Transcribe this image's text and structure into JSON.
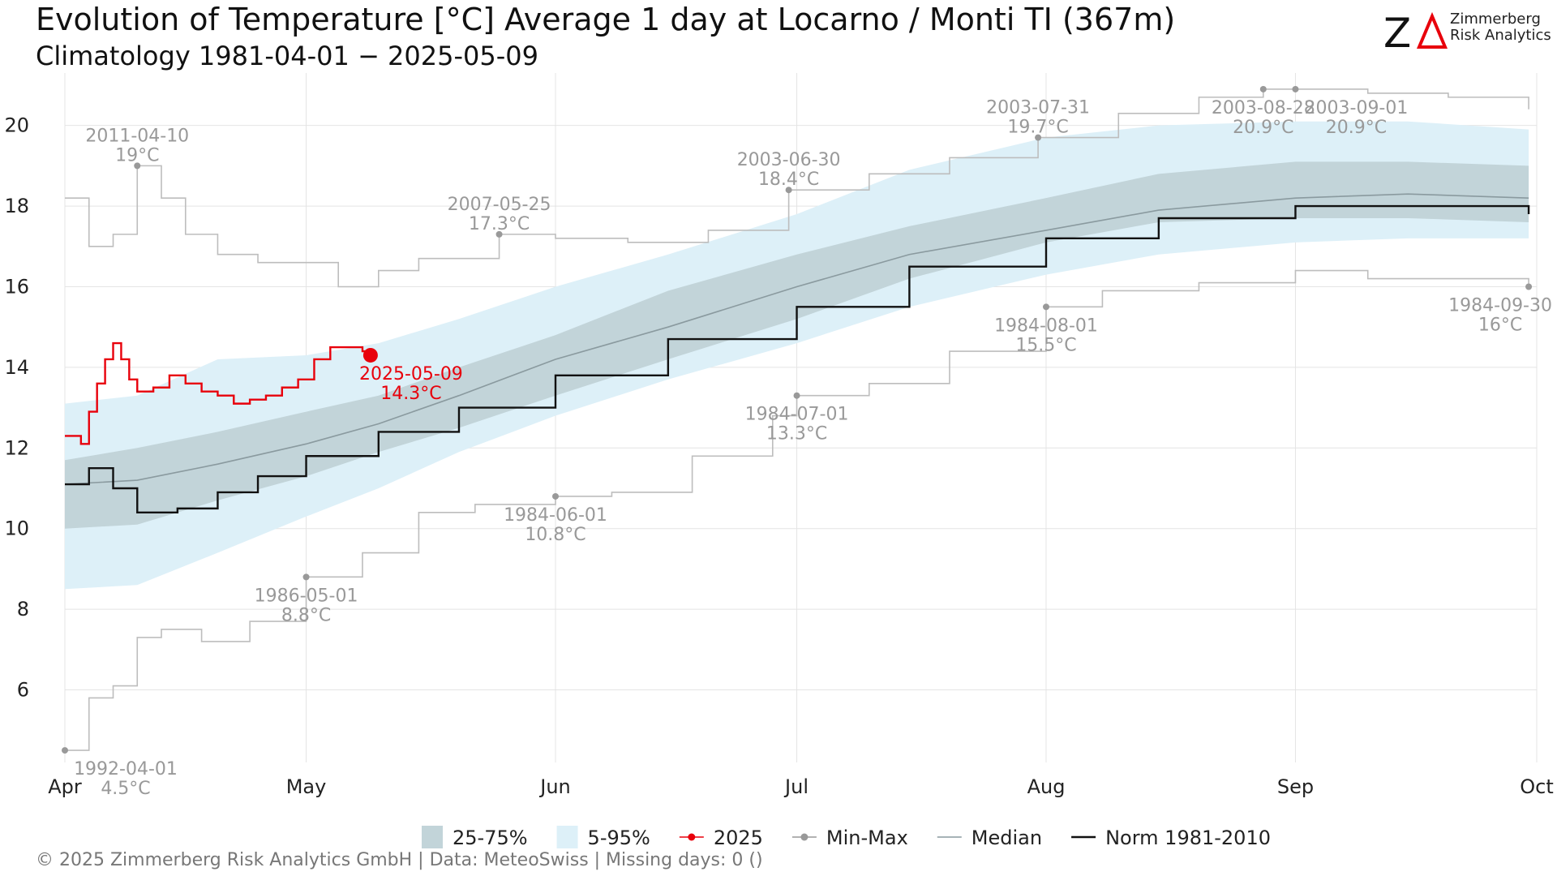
{
  "header": {
    "title": "Evolution of Temperature [°C] Average 1 day at Locarno / Monti  TI (367m)",
    "subtitle": "Climatology 1981-04-01 − 2025-05-09"
  },
  "logo": {
    "line1": "Zimmerberg",
    "line2": "Risk Analytics",
    "accent_color": "#e8000b"
  },
  "footer": {
    "text": "©  2025 Zimmerberg Risk Analytics GmbH | Data: MeteoSwiss | Missing days: 0 ()"
  },
  "chart_data": {
    "type": "line",
    "x_unit": "date",
    "xlim": [
      "2025-04-01",
      "2025-10-01"
    ],
    "ylim": [
      4.2,
      21.1
    ],
    "x_ticks": [
      {
        "date": "2025-04-01",
        "label": "Apr"
      },
      {
        "date": "2025-05-01",
        "label": "May"
      },
      {
        "date": "2025-06-01",
        "label": "Jun"
      },
      {
        "date": "2025-07-01",
        "label": "Jul"
      },
      {
        "date": "2025-08-01",
        "label": "Aug"
      },
      {
        "date": "2025-09-01",
        "label": "Sep"
      },
      {
        "date": "2025-10-01",
        "label": "Oct"
      }
    ],
    "y_ticks": [
      6,
      8,
      10,
      12,
      14,
      16,
      18,
      20
    ],
    "grid": true,
    "legend_position": "bottom",
    "legend": [
      {
        "key": "band2575",
        "label": "25-75%",
        "color": "#c2d4d9"
      },
      {
        "key": "band595",
        "label": "5-95%",
        "color": "#ddf0f8"
      },
      {
        "key": "y2025",
        "label": "2025",
        "color": "#e8000b"
      },
      {
        "key": "minmax",
        "label": "Min-Max",
        "color": "#999999"
      },
      {
        "key": "median",
        "label": "Median",
        "color": "#8a9a9f"
      },
      {
        "key": "norm",
        "label": "Norm 1981-2010",
        "color": "#111111"
      }
    ],
    "band_5_95": {
      "x": [
        "2025-04-01",
        "2025-04-10",
        "2025-04-20",
        "2025-05-01",
        "2025-05-10",
        "2025-05-20",
        "2025-06-01",
        "2025-06-15",
        "2025-07-01",
        "2025-07-15",
        "2025-08-01",
        "2025-08-15",
        "2025-09-01",
        "2025-09-15",
        "2025-09-30"
      ],
      "lower": [
        8.5,
        8.6,
        9.4,
        10.3,
        11.0,
        11.9,
        12.8,
        13.7,
        14.6,
        15.5,
        16.3,
        16.8,
        17.1,
        17.2,
        17.2
      ],
      "upper": [
        13.1,
        13.3,
        14.2,
        14.3,
        14.6,
        15.2,
        16.0,
        16.8,
        17.8,
        18.9,
        19.7,
        20.0,
        20.1,
        20.1,
        19.9
      ]
    },
    "band_25_75": {
      "x": [
        "2025-04-01",
        "2025-04-10",
        "2025-04-20",
        "2025-05-01",
        "2025-05-10",
        "2025-05-20",
        "2025-06-01",
        "2025-06-15",
        "2025-07-01",
        "2025-07-15",
        "2025-08-01",
        "2025-08-15",
        "2025-09-01",
        "2025-09-15",
        "2025-09-30"
      ],
      "lower": [
        10.0,
        10.1,
        10.7,
        11.3,
        11.9,
        12.5,
        13.3,
        14.2,
        15.2,
        16.2,
        17.1,
        17.6,
        17.7,
        17.7,
        17.6
      ],
      "upper": [
        11.7,
        12.0,
        12.4,
        12.9,
        13.3,
        14.0,
        14.8,
        15.9,
        16.8,
        17.5,
        18.2,
        18.8,
        19.1,
        19.1,
        19.0
      ]
    },
    "median": {
      "x": [
        "2025-04-01",
        "2025-04-10",
        "2025-04-20",
        "2025-05-01",
        "2025-05-10",
        "2025-05-20",
        "2025-06-01",
        "2025-06-15",
        "2025-07-01",
        "2025-07-15",
        "2025-08-01",
        "2025-08-15",
        "2025-09-01",
        "2025-09-15",
        "2025-09-30"
      ],
      "values": [
        11.1,
        11.2,
        11.6,
        12.1,
        12.6,
        13.3,
        14.2,
        15.0,
        16.0,
        16.8,
        17.4,
        17.9,
        18.2,
        18.3,
        18.2
      ]
    },
    "norm_1981_2010": {
      "x": [
        "2025-04-01",
        "2025-04-04",
        "2025-04-07",
        "2025-04-10",
        "2025-04-15",
        "2025-04-20",
        "2025-04-25",
        "2025-05-01",
        "2025-05-10",
        "2025-05-20",
        "2025-06-01",
        "2025-06-15",
        "2025-07-01",
        "2025-07-15",
        "2025-08-01",
        "2025-08-15",
        "2025-09-01",
        "2025-09-15",
        "2025-09-30"
      ],
      "values": [
        11.1,
        11.5,
        11.0,
        10.4,
        10.5,
        10.9,
        11.3,
        11.8,
        12.4,
        13.0,
        13.8,
        14.7,
        15.5,
        16.5,
        17.2,
        17.7,
        18.0,
        18.0,
        17.8
      ]
    },
    "max_series": {
      "x": [
        "2025-04-01",
        "2025-04-04",
        "2025-04-07",
        "2025-04-10",
        "2025-04-13",
        "2025-04-16",
        "2025-04-20",
        "2025-04-25",
        "2025-05-01",
        "2025-05-05",
        "2025-05-10",
        "2025-05-15",
        "2025-05-25",
        "2025-06-01",
        "2025-06-10",
        "2025-06-20",
        "2025-06-30",
        "2025-07-10",
        "2025-07-20",
        "2025-07-31",
        "2025-08-10",
        "2025-08-20",
        "2025-08-28",
        "2025-09-01",
        "2025-09-10",
        "2025-09-20",
        "2025-09-30"
      ],
      "values": [
        18.2,
        17.0,
        17.3,
        19.0,
        18.2,
        17.3,
        16.8,
        16.6,
        16.6,
        16.0,
        16.4,
        16.7,
        17.3,
        17.2,
        17.1,
        17.4,
        18.4,
        18.8,
        19.2,
        19.7,
        20.3,
        20.7,
        20.9,
        20.9,
        20.8,
        20.7,
        20.4
      ]
    },
    "min_series": {
      "x": [
        "2025-04-01",
        "2025-04-04",
        "2025-04-07",
        "2025-04-10",
        "2025-04-13",
        "2025-04-18",
        "2025-04-24",
        "2025-05-01",
        "2025-05-08",
        "2025-05-15",
        "2025-05-22",
        "2025-06-01",
        "2025-06-08",
        "2025-06-18",
        "2025-06-28",
        "2025-07-01",
        "2025-07-10",
        "2025-07-20",
        "2025-08-01",
        "2025-08-08",
        "2025-08-20",
        "2025-09-01",
        "2025-09-10",
        "2025-09-20",
        "2025-09-30"
      ],
      "values": [
        4.5,
        5.8,
        6.1,
        7.3,
        7.5,
        7.2,
        7.7,
        8.8,
        9.4,
        10.4,
        10.6,
        10.8,
        10.9,
        11.8,
        12.8,
        13.3,
        13.6,
        14.4,
        15.5,
        15.9,
        16.1,
        16.4,
        16.2,
        16.2,
        16.0
      ]
    },
    "series_2025": {
      "name": "2025",
      "x": [
        "2025-04-01",
        "2025-04-03",
        "2025-04-04",
        "2025-04-05",
        "2025-04-06",
        "2025-04-07",
        "2025-04-08",
        "2025-04-09",
        "2025-04-10",
        "2025-04-12",
        "2025-04-14",
        "2025-04-16",
        "2025-04-18",
        "2025-04-20",
        "2025-04-22",
        "2025-04-24",
        "2025-04-26",
        "2025-04-28",
        "2025-04-30",
        "2025-05-02",
        "2025-05-04",
        "2025-05-06",
        "2025-05-08",
        "2025-05-09"
      ],
      "values": [
        12.3,
        12.1,
        12.9,
        13.6,
        14.2,
        14.6,
        14.2,
        13.7,
        13.4,
        13.5,
        13.8,
        13.6,
        13.4,
        13.3,
        13.1,
        13.2,
        13.3,
        13.5,
        13.7,
        14.2,
        14.5,
        14.5,
        14.4,
        14.3
      ]
    },
    "current": {
      "date": "2025-05-09",
      "value": 14.3,
      "label_date": "2025-05-09",
      "label_value": "14.3°C"
    },
    "annotations": [
      {
        "date": "2025-04-10",
        "value": 19.0,
        "label_date": "2011-04-10",
        "label_value": "19°C",
        "pos": "above"
      },
      {
        "date": "2025-05-25",
        "value": 17.3,
        "label_date": "2007-05-25",
        "label_value": "17.3°C",
        "pos": "above"
      },
      {
        "date": "2025-06-30",
        "value": 18.4,
        "label_date": "2003-06-30",
        "label_value": "18.4°C",
        "pos": "above"
      },
      {
        "date": "2025-07-31",
        "value": 19.7,
        "label_date": "2003-07-31",
        "label_value": "19.7°C",
        "pos": "above"
      },
      {
        "date": "2025-08-28",
        "value": 20.9,
        "label_date": "2003-08-28",
        "label_value": "20.9°C",
        "pos": "below"
      },
      {
        "date": "2025-09-01",
        "value": 20.9,
        "label_date": "2003-09-01",
        "label_value": "20.9°C",
        "pos": "belowright"
      },
      {
        "date": "2025-04-01",
        "value": 4.5,
        "label_date": "1992-04-01",
        "label_value": "4.5°C",
        "pos": "belowright"
      },
      {
        "date": "2025-05-01",
        "value": 8.8,
        "label_date": "1986-05-01",
        "label_value": "8.8°C",
        "pos": "below"
      },
      {
        "date": "2025-06-01",
        "value": 10.8,
        "label_date": "1984-06-01",
        "label_value": "10.8°C",
        "pos": "below"
      },
      {
        "date": "2025-07-01",
        "value": 13.3,
        "label_date": "1984-07-01",
        "label_value": "13.3°C",
        "pos": "below"
      },
      {
        "date": "2025-08-01",
        "value": 15.5,
        "label_date": "1984-08-01",
        "label_value": "15.5°C",
        "pos": "below"
      },
      {
        "date": "2025-09-30",
        "value": 16.0,
        "label_date": "1984-09-30",
        "label_value": "16°C",
        "pos": "belowleft"
      }
    ]
  }
}
